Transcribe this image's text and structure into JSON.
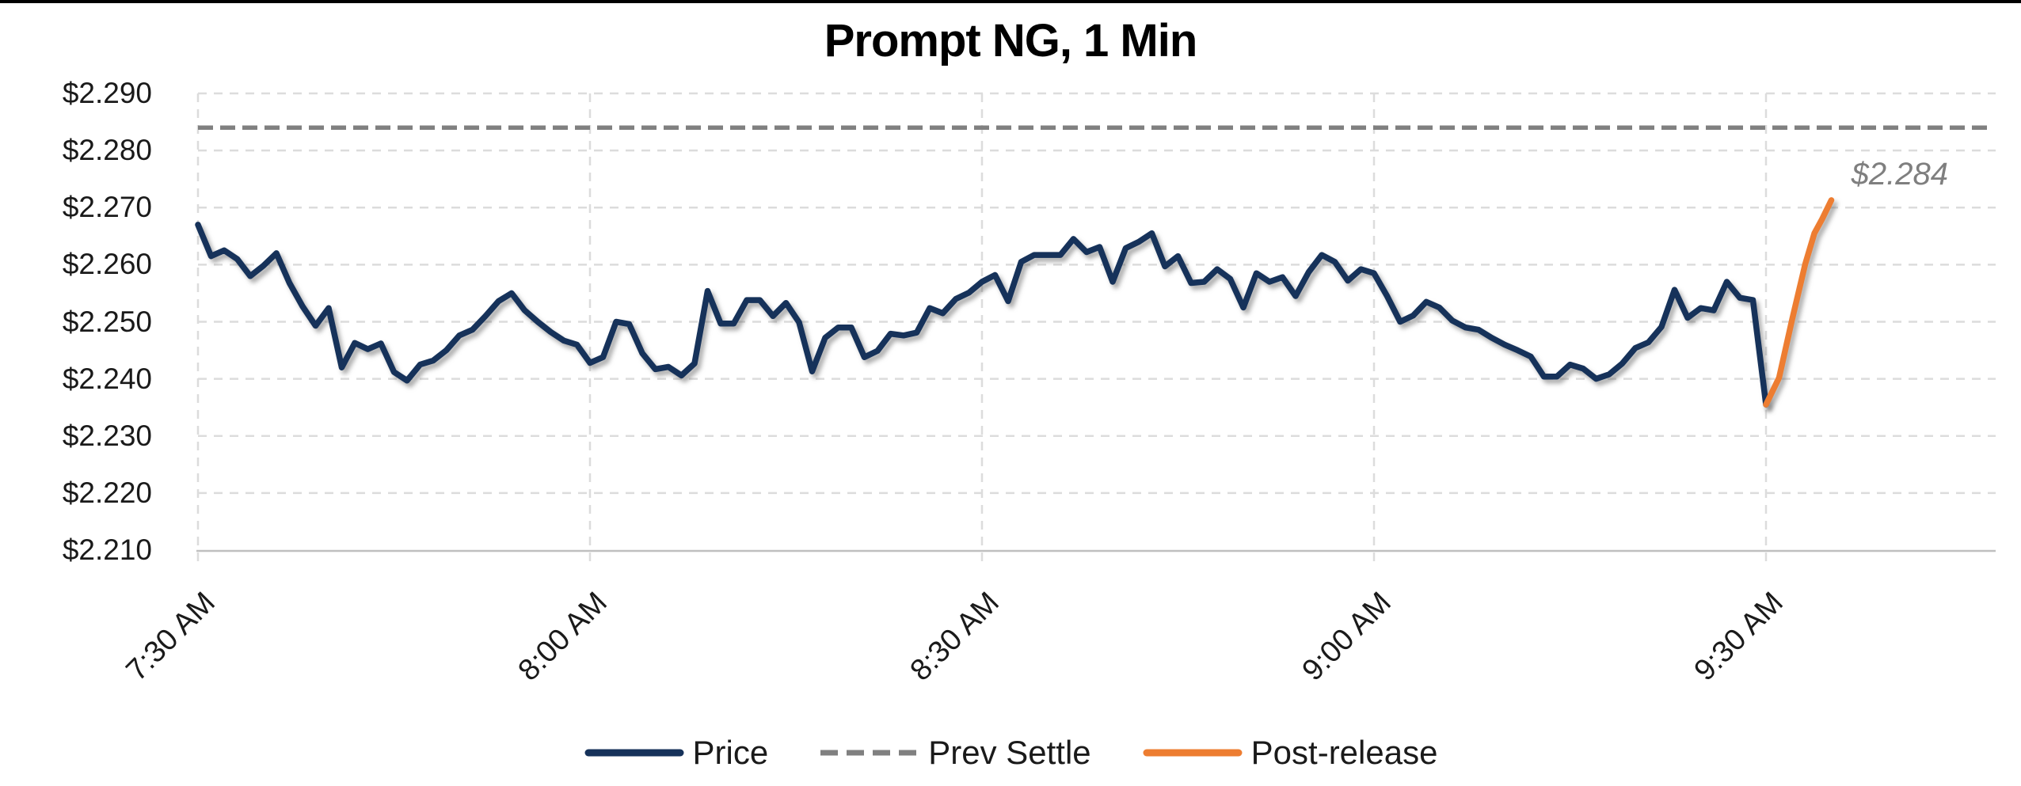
{
  "colors": {
    "price": "#16325A",
    "prev_settle": "#808080",
    "post_release": "#ED7D31",
    "gridline": "#DCDCDC",
    "axis": "#BFBFBF",
    "annotation": "#7F7F7F",
    "title": "#000000",
    "top_border": "#000000"
  },
  "legend": {
    "position": "bottom-center",
    "items": [
      {
        "label": "Price",
        "swatch": "solid-navy-line"
      },
      {
        "label": "Prev Settle",
        "swatch": "dashed-gray-line"
      },
      {
        "label": "Post-release",
        "swatch": "solid-orange-line"
      }
    ]
  },
  "chart_data": {
    "type": "line",
    "title": "Prompt NG, 1 Min",
    "xlabel": "",
    "ylabel": "",
    "grid": "dashed-light-gray",
    "x_axis": {
      "start": "7:30 AM",
      "interval_minutes": 1,
      "ticks": [
        {
          "label": "7:30 AM",
          "minute": 0
        },
        {
          "label": "8:00 AM",
          "minute": 30
        },
        {
          "label": "8:30 AM",
          "minute": 60
        },
        {
          "label": "9:00 AM",
          "minute": 90
        },
        {
          "label": "9:30 AM",
          "minute": 120
        }
      ]
    },
    "y_axis": {
      "min": 2.21,
      "max": 2.29,
      "format": "$0.000",
      "ticks": [
        {
          "label": "$2.290",
          "value": 2.29
        },
        {
          "label": "$2.280",
          "value": 2.28
        },
        {
          "label": "$2.270",
          "value": 2.27
        },
        {
          "label": "$2.260",
          "value": 2.26
        },
        {
          "label": "$2.250",
          "value": 2.25
        },
        {
          "label": "$2.240",
          "value": 2.24
        },
        {
          "label": "$2.230",
          "value": 2.23
        },
        {
          "label": "$2.220",
          "value": 2.22
        },
        {
          "label": "$2.210",
          "value": 2.21
        }
      ]
    },
    "series": [
      {
        "name": "Price",
        "style": "solid",
        "start_minute": 0,
        "step_minutes": 1,
        "values": [
          2.267,
          2.2615,
          2.2625,
          2.261,
          2.258,
          2.2598,
          2.262,
          2.2568,
          2.2527,
          2.2493,
          2.2524,
          2.242,
          2.2463,
          2.2452,
          2.2462,
          2.2412,
          2.2397,
          2.2425,
          2.2432,
          2.245,
          2.2476,
          2.2486,
          2.251,
          2.2536,
          2.255,
          2.252,
          2.25,
          2.2482,
          2.2467,
          2.246,
          2.2428,
          2.2438,
          2.25,
          2.2496,
          2.2445,
          2.2417,
          2.2421,
          2.2406,
          2.2427,
          2.2554,
          2.2497,
          2.2497,
          2.2538,
          2.2538,
          2.251,
          2.2533,
          2.2499,
          2.2413,
          2.2472,
          2.249,
          2.249,
          2.2438,
          2.2449,
          2.2479,
          2.2476,
          2.2481,
          2.2524,
          2.2515,
          2.254,
          2.2551,
          2.257,
          2.2582,
          2.2536,
          2.2605,
          2.2617,
          2.2617,
          2.2617,
          2.2645,
          2.2622,
          2.2631,
          2.257,
          2.2629,
          2.264,
          2.2655,
          2.2597,
          2.2615,
          2.2568,
          2.257,
          2.2592,
          2.2575,
          2.2525,
          2.2585,
          2.257,
          2.2578,
          2.2545,
          2.2587,
          2.2617,
          2.2605,
          2.2572,
          2.2592,
          2.2585,
          2.2545,
          2.25,
          2.2511,
          2.2535,
          2.2525,
          2.2502,
          2.249,
          2.2486,
          2.2472,
          2.246,
          2.245,
          2.2439,
          2.2404,
          2.2404,
          2.2425,
          2.2418,
          2.24,
          2.2408,
          2.2427,
          2.2454,
          2.2464,
          2.2491,
          2.2556,
          2.2507,
          2.2524,
          2.252,
          2.257,
          2.2542,
          2.2538,
          2.2355
        ]
      },
      {
        "name": "Prev Settle",
        "style": "dashed",
        "value": 2.284
      },
      {
        "name": "Post-release",
        "style": "solid",
        "points": [
          [
            120.0,
            2.2355
          ],
          [
            121.0,
            2.2402
          ],
          [
            122.0,
            2.2504
          ],
          [
            123.0,
            2.2601
          ],
          [
            123.7,
            2.2655
          ],
          [
            124.3,
            2.268
          ],
          [
            125.0,
            2.2713
          ]
        ]
      }
    ],
    "annotation": {
      "text": "$2.284",
      "refers_to": "Prev Settle",
      "color": "#7F7F7F"
    }
  }
}
